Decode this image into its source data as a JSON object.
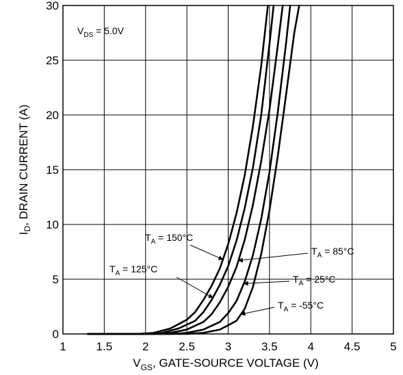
{
  "chart_data": {
    "type": "line",
    "title": "",
    "xlabel": {
      "main": "V",
      "sub": "GS",
      "rest": ", GATE-SOURCE VOLTAGE (V)"
    },
    "ylabel": {
      "main": "I",
      "sub": "D",
      "rest": ", DRAIN CURRENT (A)"
    },
    "xlim": [
      1,
      5
    ],
    "ylim": [
      0,
      30
    ],
    "xticks": [
      1,
      1.5,
      2,
      2.5,
      3,
      3.5,
      4,
      4.5,
      5
    ],
    "xtick_labels": [
      "1",
      "1.5",
      "2",
      "2.5",
      "3",
      "3.5",
      "4",
      "4.5",
      "5"
    ],
    "yticks": [
      0,
      5,
      10,
      15,
      20,
      25,
      30
    ],
    "ytick_labels": [
      "0",
      "5",
      "10",
      "15",
      "20",
      "25",
      "30"
    ],
    "grid": true,
    "condition": {
      "main": "V",
      "sub": "DS",
      "rest": " = 5.0V"
    },
    "series": [
      {
        "name": {
          "main": "T",
          "sub": "A",
          "rest": " = 150°C"
        },
        "x": [
          1.3,
          1.9,
          2.1,
          2.3,
          2.5,
          2.6,
          2.7,
          2.8,
          2.9,
          3.0,
          3.1,
          3.2,
          3.3,
          3.4,
          3.48
        ],
        "y": [
          0,
          0,
          0.1,
          0.5,
          1.3,
          2.0,
          3.1,
          4.4,
          6.0,
          8.2,
          11.0,
          14.5,
          19.0,
          24.5,
          30
        ]
      },
      {
        "name": {
          "main": "T",
          "sub": "A",
          "rest": " = 125°C"
        },
        "x": [
          1.3,
          2.0,
          2.2,
          2.4,
          2.6,
          2.7,
          2.8,
          2.9,
          3.0,
          3.1,
          3.2,
          3.3,
          3.4,
          3.5,
          3.55
        ],
        "y": [
          0,
          0,
          0.1,
          0.5,
          1.2,
          2.0,
          3.1,
          4.5,
          6.2,
          8.5,
          11.5,
          15.2,
          20.0,
          26.5,
          30
        ]
      },
      {
        "name": {
          "main": "T",
          "sub": "A",
          "rest": " = 85°C"
        },
        "x": [
          1.3,
          2.1,
          2.3,
          2.5,
          2.7,
          2.8,
          2.9,
          3.0,
          3.1,
          3.2,
          3.3,
          3.4,
          3.5,
          3.6,
          3.66
        ],
        "y": [
          0,
          0,
          0.1,
          0.4,
          1.1,
          1.8,
          2.9,
          4.3,
          6.1,
          8.6,
          11.8,
          15.8,
          20.5,
          26.3,
          30
        ]
      },
      {
        "name": {
          "main": "T",
          "sub": "A",
          "rest": " = 25°C"
        },
        "x": [
          1.3,
          2.3,
          2.5,
          2.7,
          2.9,
          3.0,
          3.1,
          3.2,
          3.3,
          3.4,
          3.5,
          3.6,
          3.7,
          3.75
        ],
        "y": [
          0,
          0,
          0.1,
          0.4,
          1.1,
          1.9,
          3.0,
          4.8,
          7.2,
          10.5,
          14.8,
          20.2,
          26.5,
          30
        ]
      },
      {
        "name": {
          "main": "T",
          "sub": "A",
          "rest": " = -55°C"
        },
        "x": [
          1.3,
          2.5,
          2.7,
          2.9,
          3.1,
          3.2,
          3.3,
          3.4,
          3.5,
          3.6,
          3.7,
          3.8,
          3.86
        ],
        "y": [
          0,
          0,
          0.1,
          0.4,
          1.2,
          2.3,
          4.3,
          7.3,
          11.3,
          16.2,
          21.8,
          27.5,
          30
        ]
      }
    ]
  }
}
